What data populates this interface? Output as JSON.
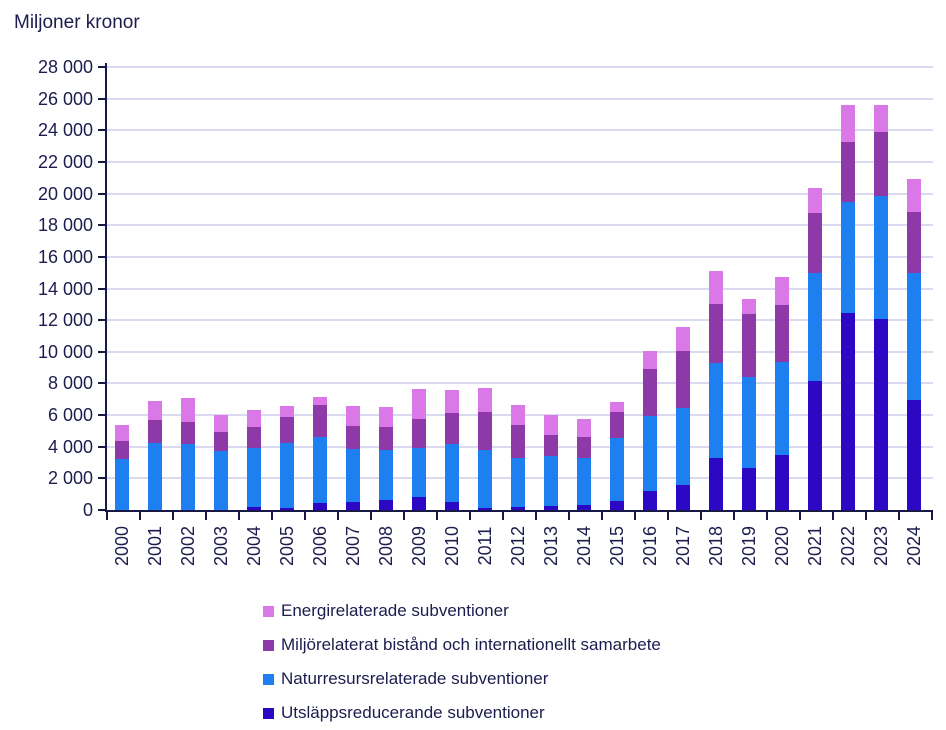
{
  "header": {
    "title": "Miljoner kronor"
  },
  "colors": {
    "energi_pink": "#d978e6",
    "miljo_purple": "#8e39a8",
    "natur_blue": "#1e80f0",
    "utslapp_navy": "#2c08c4",
    "axis_and_text": "#1c1c4e",
    "gridline": "#d9d9f0"
  },
  "chart_data": {
    "type": "bar",
    "stacked": true,
    "title": "Miljoner kronor",
    "xlabel": "",
    "ylabel": "Miljoner kronor",
    "ylim": [
      0,
      28000
    ],
    "ytick_step": 2000,
    "grid": true,
    "legend_position": "bottom",
    "y_tick_labels": [
      "0",
      "2 000",
      "4 000",
      "6 000",
      "8 000",
      "10 000",
      "12 000",
      "14 000",
      "16 000",
      "18 000",
      "20 000",
      "22 000",
      "24 000",
      "26 000",
      "28 000"
    ],
    "categories": [
      "2000",
      "2001",
      "2002",
      "2003",
      "2004",
      "2005",
      "2006",
      "2007",
      "2008",
      "2009",
      "2010",
      "2011",
      "2012",
      "2013",
      "2014",
      "2015",
      "2016",
      "2017",
      "2018",
      "2019",
      "2020",
      "2021",
      "2022",
      "2023",
      "2024"
    ],
    "series": [
      {
        "name": "Utsläppsreducerande subventioner",
        "color": "#2c08c4",
        "values": [
          0,
          0,
          0,
          0,
          200,
          150,
          450,
          500,
          650,
          800,
          500,
          150,
          200,
          250,
          300,
          600,
          1200,
          1550,
          3300,
          2650,
          3500,
          8150,
          12450,
          12050,
          6950
        ]
      },
      {
        "name": "Naturresursrelaterade subventioner",
        "color": "#1e80f0",
        "values": [
          3200,
          4250,
          4150,
          3700,
          3750,
          4100,
          4150,
          3350,
          3150,
          3100,
          3650,
          3650,
          3100,
          3150,
          3000,
          3950,
          4750,
          4900,
          6000,
          5750,
          5850,
          6800,
          7050,
          7800,
          8000
        ]
      },
      {
        "name": "Miljörelaterat bistånd och internationellt samarbete",
        "color": "#8e39a8",
        "values": [
          1150,
          1450,
          1400,
          1250,
          1300,
          1600,
          2050,
          1450,
          1450,
          1850,
          2000,
          2400,
          2100,
          1350,
          1300,
          1650,
          2950,
          3600,
          3750,
          4000,
          3600,
          3800,
          3750,
          4050,
          3900
        ]
      },
      {
        "name": "Energirelaterade subventioner",
        "color": "#d978e6",
        "values": [
          1050,
          1200,
          1500,
          1050,
          1050,
          750,
          500,
          1300,
          1250,
          1900,
          1450,
          1500,
          1250,
          1250,
          1150,
          650,
          1150,
          1550,
          2050,
          950,
          1800,
          1600,
          2350,
          1700,
          2050
        ]
      }
    ]
  },
  "legend": {
    "items": [
      {
        "label": "Energirelaterade subventioner",
        "color": "#d978e6"
      },
      {
        "label": "Miljörelaterat bistånd och internationellt samarbete",
        "color": "#8e39a8"
      },
      {
        "label": "Naturresursrelaterade subventioner",
        "color": "#1e80f0"
      },
      {
        "label": "Utsläppsreducerande subventioner",
        "color": "#2c08c4"
      }
    ]
  }
}
